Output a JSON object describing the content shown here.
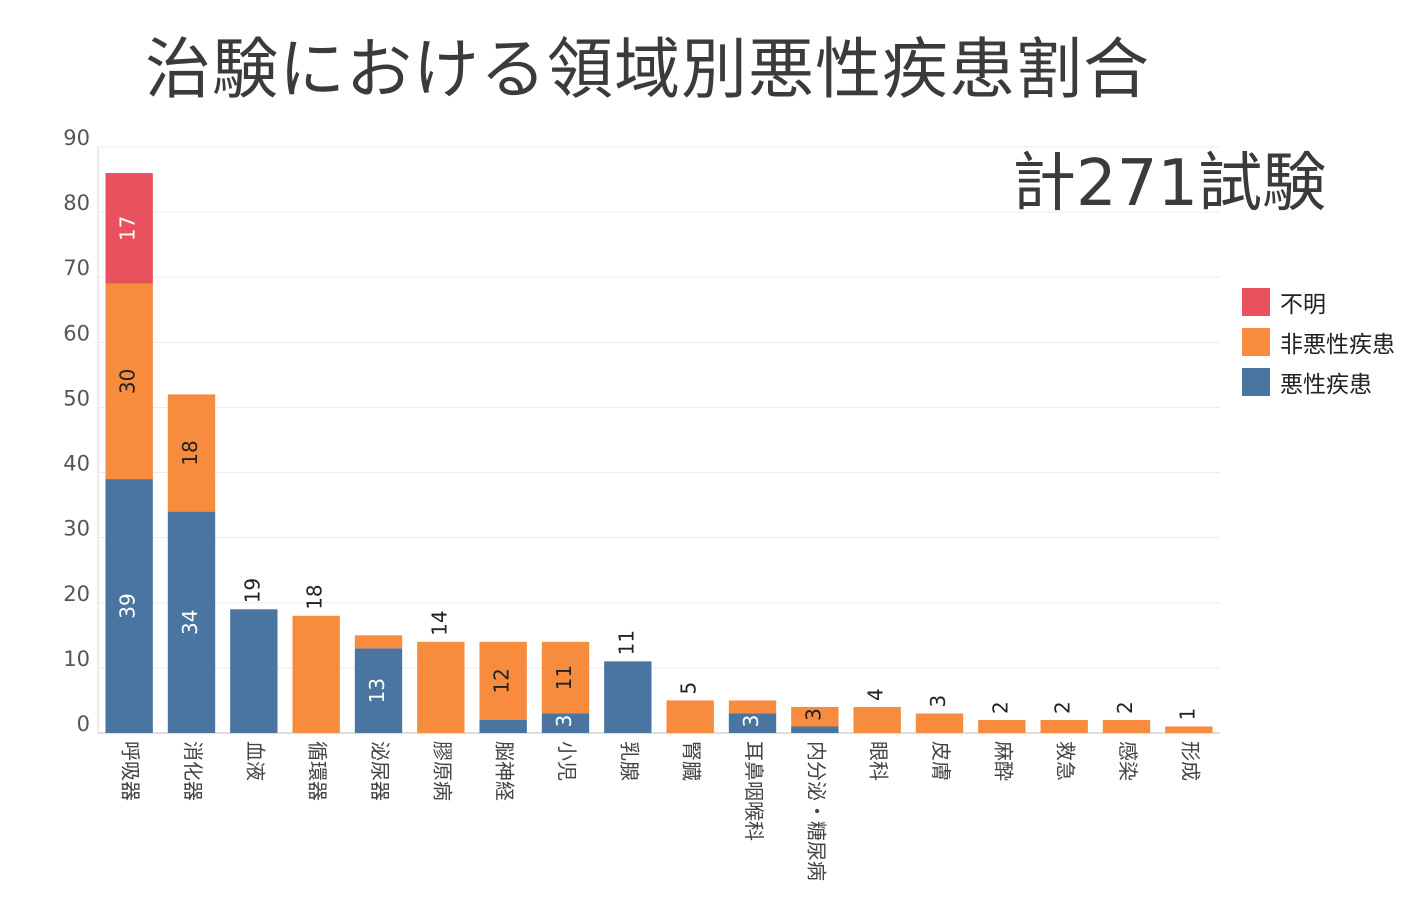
{
  "title": "治験における領域別悪性疾患割合",
  "annotation": "計271試験",
  "legend": [
    {
      "name": "不明",
      "color": "#E9515E"
    },
    {
      "name": "非悪性疾患",
      "color": "#F78C3E"
    },
    {
      "name": "悪性疾患",
      "color": "#4A75A1"
    }
  ],
  "chart_data": {
    "type": "bar",
    "stacked": true,
    "categories": [
      "呼吸器",
      "消化器",
      "血液",
      "循環器",
      "泌尿器",
      "膠原病",
      "脳神経",
      "小児",
      "乳腺",
      "腎臓",
      "耳鼻咽喉科",
      "内分泌・糖尿病",
      "眼科",
      "皮膚",
      "麻酔",
      "救急",
      "感染",
      "形成"
    ],
    "series": [
      {
        "name": "悪性疾患",
        "color": "#4A75A1",
        "values": [
          39,
          34,
          19,
          0,
          13,
          0,
          2,
          3,
          11,
          0,
          3,
          1,
          0,
          0,
          0,
          0,
          0,
          0
        ]
      },
      {
        "name": "非悪性疾患",
        "color": "#F78C3E",
        "values": [
          30,
          18,
          0,
          18,
          2,
          14,
          12,
          11,
          0,
          5,
          2,
          3,
          4,
          3,
          2,
          2,
          2,
          1
        ]
      },
      {
        "name": "不明",
        "color": "#E9515E",
        "values": [
          17,
          0,
          0,
          0,
          0,
          0,
          0,
          0,
          0,
          0,
          0,
          0,
          0,
          0,
          0,
          0,
          0,
          0
        ]
      }
    ],
    "segment_labels": [
      {
        "category": "呼吸器",
        "series": "悪性疾患",
        "text": "39"
      },
      {
        "category": "呼吸器",
        "series": "非悪性疾患",
        "text": "30"
      },
      {
        "category": "呼吸器",
        "series": "不明",
        "text": "17"
      },
      {
        "category": "消化器",
        "series": "悪性疾患",
        "text": "34"
      },
      {
        "category": "消化器",
        "series": "非悪性疾患",
        "text": "18"
      },
      {
        "category": "泌尿器",
        "series": "悪性疾患",
        "text": "13"
      },
      {
        "category": "脳神経",
        "series": "非悪性疾患",
        "text": "12"
      },
      {
        "category": "小児",
        "series": "悪性疾患",
        "text": "3"
      },
      {
        "category": "小児",
        "series": "非悪性疾患",
        "text": "11"
      },
      {
        "category": "耳鼻咽喉科",
        "series": "悪性疾患",
        "text": "3"
      },
      {
        "category": "内分泌・糖尿病",
        "series": "非悪性疾患",
        "text": "3"
      }
    ],
    "total_labels": [
      {
        "category": "血液",
        "text": "19"
      },
      {
        "category": "循環器",
        "text": "18"
      },
      {
        "category": "膠原病",
        "text": "14"
      },
      {
        "category": "乳腺",
        "text": "11"
      },
      {
        "category": "腎臓",
        "text": "5"
      },
      {
        "category": "眼科",
        "text": "4"
      },
      {
        "category": "皮膚",
        "text": "3"
      },
      {
        "category": "麻酔",
        "text": "2"
      },
      {
        "category": "救急",
        "text": "2"
      },
      {
        "category": "感染",
        "text": "2"
      },
      {
        "category": "形成",
        "text": "1"
      }
    ],
    "y_ticks": [
      0,
      10,
      20,
      30,
      40,
      50,
      60,
      70,
      80,
      90
    ],
    "ylim": [
      0,
      90
    ],
    "grid": true,
    "legend_position": "right"
  }
}
